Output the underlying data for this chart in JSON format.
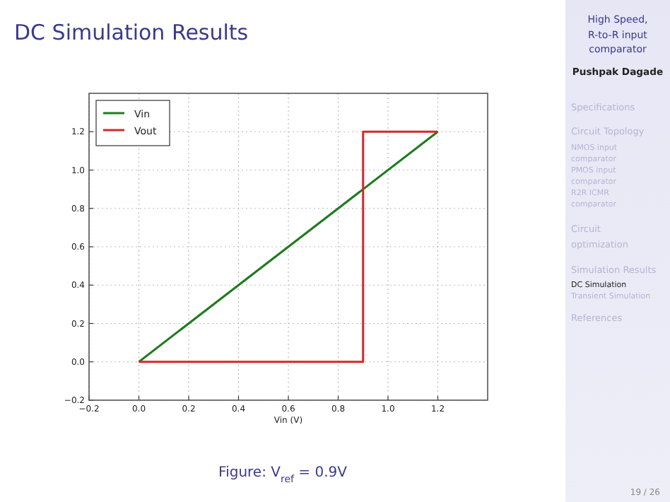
{
  "chart_data": {
    "type": "line",
    "title": "DC Simulation Results",
    "xlabel": "Vin (V)",
    "xlim": [
      -0.2,
      1.4
    ],
    "ylim": [
      -0.2,
      1.4
    ],
    "xticks": [
      {
        "value": -0.2,
        "label": "−0.2"
      },
      {
        "value": 0,
        "label": "0.0"
      },
      0.2,
      0.4,
      0.6,
      0.8,
      {
        "value": 1,
        "label": "1.0"
      },
      1.2
    ],
    "yticks": [
      {
        "value": -0.2,
        "label": "−0.2"
      },
      {
        "value": 0,
        "label": "0.0"
      },
      0.2,
      0.4,
      0.6,
      0.8,
      {
        "value": 1,
        "label": "1.0"
      },
      1.2
    ],
    "grid": true,
    "legend": "top left",
    "line_style": "solid",
    "series": [
      {
        "name": "Vin",
        "color": "#1f7a1f",
        "x": [
          0,
          1.2
        ],
        "values": [
          0,
          1.2
        ]
      },
      {
        "name": "Vout",
        "color": "#d62728",
        "x": [
          0,
          0.9,
          0.9,
          1.2
        ],
        "values": [
          0,
          0,
          1.2,
          1.2
        ]
      }
    ],
    "annotations": [
      "Figure: V$_{ref}$ = 0.9V",
      "High Speed,",
      "R-to-R input",
      "comparator",
      "Pushpak Dagade",
      "Specifications",
      "Circuit Topology",
      "NMOS input",
      "comparator",
      "PMOS input",
      "comparator",
      "R2R ICMR",
      "comparator",
      "Circuit",
      "optimization",
      "Simulation Results",
      "DC Simulation",
      "Transient Simulation",
      "References",
      "19 / 26"
    ]
  }
}
